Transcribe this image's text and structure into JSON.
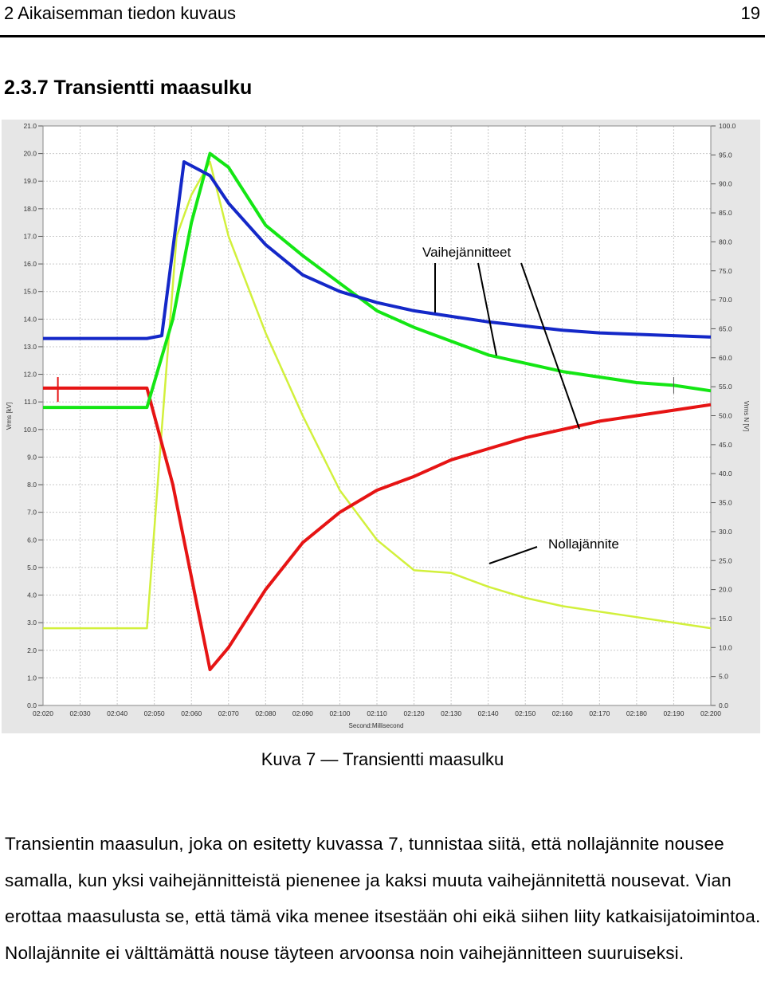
{
  "header": {
    "chapter": "2 Aikaisemman tiedon kuvaus",
    "page_number": "19"
  },
  "section_title": "2.3.7 Transientti maasulku",
  "figure": {
    "caption": "Kuva 7 — Transientti maasulku",
    "chart_data": {
      "type": "line",
      "title": "",
      "xlabel": "Second:Millisecond",
      "ylabel_left": "Vrms [kV]",
      "ylabel_right": "Vrms N [V]",
      "x_ticks": [
        "02:020",
        "02:030",
        "02:040",
        "02:050",
        "02:060",
        "02:070",
        "02:080",
        "02:090",
        "02:100",
        "02:110",
        "02:120",
        "02:130",
        "02:140",
        "02:150",
        "02:160",
        "02:170",
        "02:180",
        "02:190",
        "02:200"
      ],
      "y_left_ticks": [
        "0.0",
        "1.0",
        "2.0",
        "3.0",
        "4.0",
        "5.0",
        "6.0",
        "7.0",
        "8.0",
        "9.0",
        "10.0",
        "11.0",
        "12.0",
        "13.0",
        "14.0",
        "15.0",
        "16.0",
        "17.0",
        "18.0",
        "19.0",
        "20.0",
        "21.0"
      ],
      "y_right_ticks": [
        "0.0",
        "5.0",
        "10.0",
        "15.0",
        "20.0",
        "25.0",
        "30.0",
        "35.0",
        "40.0",
        "45.0",
        "50.0",
        "55.0",
        "60.0",
        "65.0",
        "70.0",
        "75.0",
        "80.0",
        "85.0",
        "90.0",
        "95.0",
        "100.0"
      ],
      "xlim_ms": [
        2020,
        2200
      ],
      "ylim_left": [
        0,
        21
      ],
      "ylim_right": [
        0,
        100
      ],
      "grid": true,
      "series": [
        {
          "color": "#1428c8",
          "axis": "left",
          "x": [
            2020,
            2048,
            2052,
            2058,
            2065,
            2070,
            2080,
            2090,
            2100,
            2110,
            2120,
            2130,
            2140,
            2150,
            2160,
            2170,
            2180,
            2190,
            2200
          ],
          "y": [
            13.3,
            13.3,
            13.4,
            19.7,
            19.2,
            18.2,
            16.7,
            15.6,
            15.0,
            14.6,
            14.3,
            14.1,
            13.9,
            13.75,
            13.6,
            13.5,
            13.45,
            13.4,
            13.35
          ]
        },
        {
          "color": "#14e614",
          "axis": "left",
          "x": [
            2020,
            2048,
            2055,
            2060,
            2065,
            2070,
            2080,
            2090,
            2100,
            2110,
            2120,
            2130,
            2140,
            2150,
            2160,
            2170,
            2180,
            2190,
            2200
          ],
          "y": [
            10.8,
            10.8,
            14.0,
            17.5,
            20.0,
            19.5,
            17.4,
            16.3,
            15.3,
            14.3,
            13.7,
            13.2,
            12.7,
            12.4,
            12.1,
            11.9,
            11.7,
            11.6,
            11.4
          ]
        },
        {
          "color": "#e61414",
          "axis": "left",
          "x": [
            2020,
            2048,
            2055,
            2065,
            2070,
            2080,
            2090,
            2100,
            2110,
            2120,
            2130,
            2140,
            2150,
            2160,
            2170,
            2180,
            2190,
            2200
          ],
          "y": [
            11.5,
            11.5,
            8.0,
            1.3,
            2.1,
            4.2,
            5.9,
            7.0,
            7.8,
            8.3,
            8.9,
            9.3,
            9.7,
            10.0,
            10.3,
            10.5,
            10.7,
            10.9
          ]
        },
        {
          "color": "#d2f03c",
          "axis": "left",
          "x": [
            2020,
            2048,
            2052,
            2056,
            2060,
            2065,
            2070,
            2080,
            2090,
            2100,
            2110,
            2120,
            2130,
            2140,
            2150,
            2160,
            2170,
            2180,
            2190,
            2200
          ],
          "y": [
            2.8,
            2.8,
            10.0,
            17.0,
            18.5,
            19.7,
            17.0,
            13.5,
            10.5,
            7.8,
            6.0,
            4.9,
            4.8,
            4.3,
            3.9,
            3.6,
            3.4,
            3.2,
            3.0,
            2.8
          ]
        }
      ],
      "annotations": [
        {
          "text": "Vaihejännitteet"
        },
        {
          "text": "Nollajännite"
        }
      ]
    }
  },
  "body": {
    "paragraph": "Transientin maasulun, joka on esitetty kuvassa 7, tunnistaa siitä, että nollajännite nousee samalla, kun yksi vaihejännitteistä pienenee ja kaksi muuta vaihejännitettä nousevat. Vian erottaa maasulusta se, että tämä vika menee itsestään ohi eikä siihen liity katkaisijatoimintoa. Nollajännite ei välttämättä nouse täyteen arvoonsa noin vaihejännitteen suuruiseksi."
  }
}
